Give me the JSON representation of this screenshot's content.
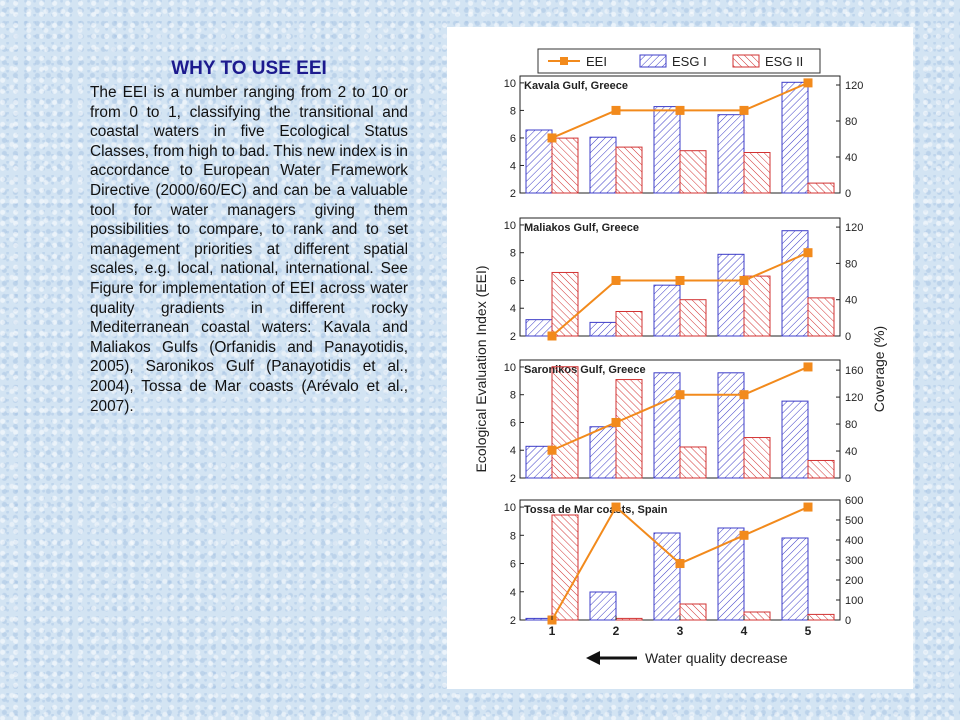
{
  "slide": {
    "title": "WHY TO USE EEI",
    "body": "The EEI is a number ranging from 2 to 10 or from 0 to 1, classifying the transitional and coastal waters in five Ecological Status Classes, from high to bad. This new index is in accordance to European Water Framework Directive (2000/60/EC) and can be a valuable tool for water managers giving them possibilities to compare, to rank and to set management priorities at different spatial scales, e.g. local, national, international. See Figure for implementation of EEI across water quality gradients in different rocky Mediterranean coastal waters: Kavala and Maliakos Gulfs (Orfanidis and Panayotidis, 2005), Saronikos Gulf (Panayotidis et al., 2004), Tossa de Mar coasts (Arévalo et al., 2007)."
  },
  "figure": {
    "legend": [
      "EEI",
      "ESG I",
      "ESG II"
    ],
    "ylabel_left": "Ecological Evaluation Index (EEI)",
    "ylabel_right": "Coverage (%)",
    "xlabel": "Water quality decrease",
    "colors": {
      "eei": "#f28a1c",
      "esg1": "#3c3cc8",
      "esg2": "#d23232"
    }
  },
  "chart_data": [
    {
      "type": "bar",
      "title": "Kavala Gulf, Greece",
      "categories": [
        "1",
        "2",
        "3",
        "4",
        "5"
      ],
      "ylim": [
        2,
        10.5
      ],
      "y2lim": [
        0,
        130
      ],
      "y2ticks": [
        0,
        40,
        80,
        120
      ],
      "series": [
        {
          "name": "EEI",
          "axis": "left",
          "kind": "line",
          "values": [
            6.0,
            8.0,
            8.0,
            8.0,
            10.0
          ]
        },
        {
          "name": "ESG I",
          "axis": "right",
          "kind": "bar",
          "values": [
            70,
            62,
            96,
            87,
            123
          ]
        },
        {
          "name": "ESG II",
          "axis": "right",
          "kind": "bar",
          "values": [
            61,
            51,
            47,
            45,
            11
          ]
        }
      ]
    },
    {
      "type": "bar",
      "title": "Maliakos Gulf, Greece",
      "categories": [
        "1",
        "2",
        "3",
        "4",
        "5"
      ],
      "ylim": [
        2,
        10.5
      ],
      "y2lim": [
        0,
        130
      ],
      "y2ticks": [
        0,
        40,
        80,
        120
      ],
      "series": [
        {
          "name": "EEI",
          "axis": "left",
          "kind": "line",
          "values": [
            2.0,
            6.0,
            6.0,
            6.0,
            8.0
          ]
        },
        {
          "name": "ESG I",
          "axis": "right",
          "kind": "bar",
          "values": [
            18,
            15,
            56,
            90,
            116
          ]
        },
        {
          "name": "ESG II",
          "axis": "right",
          "kind": "bar",
          "values": [
            70,
            27,
            40,
            66,
            42
          ]
        }
      ]
    },
    {
      "type": "bar",
      "title": "Saronikos Gulf, Greece",
      "categories": [
        "1",
        "2",
        "3",
        "4",
        "5"
      ],
      "ylim": [
        2,
        10.5
      ],
      "y2lim": [
        0,
        175
      ],
      "y2ticks": [
        0,
        40,
        80,
        120,
        160
      ],
      "series": [
        {
          "name": "EEI",
          "axis": "left",
          "kind": "line",
          "values": [
            4.0,
            6.0,
            8.0,
            8.0,
            10.0
          ]
        },
        {
          "name": "ESG I",
          "axis": "right",
          "kind": "bar",
          "values": [
            47,
            76,
            156,
            156,
            114
          ]
        },
        {
          "name": "ESG II",
          "axis": "right",
          "kind": "bar",
          "values": [
            165,
            146,
            46,
            60,
            26
          ]
        }
      ]
    },
    {
      "type": "bar",
      "title": "Tossa de Mar coasts, Spain",
      "categories": [
        "1",
        "2",
        "3",
        "4",
        "5"
      ],
      "ylim": [
        2,
        10.5
      ],
      "y2lim": [
        0,
        600
      ],
      "y2ticks": [
        0,
        100,
        200,
        300,
        400,
        500,
        600
      ],
      "series": [
        {
          "name": "EEI",
          "axis": "left",
          "kind": "line",
          "values": [
            2.0,
            10.0,
            6.0,
            8.0,
            10.0
          ]
        },
        {
          "name": "ESG I",
          "axis": "right",
          "kind": "bar",
          "values": [
            8,
            140,
            435,
            460,
            410
          ]
        },
        {
          "name": "ESG II",
          "axis": "right",
          "kind": "bar",
          "values": [
            525,
            8,
            80,
            40,
            28
          ]
        }
      ]
    }
  ]
}
